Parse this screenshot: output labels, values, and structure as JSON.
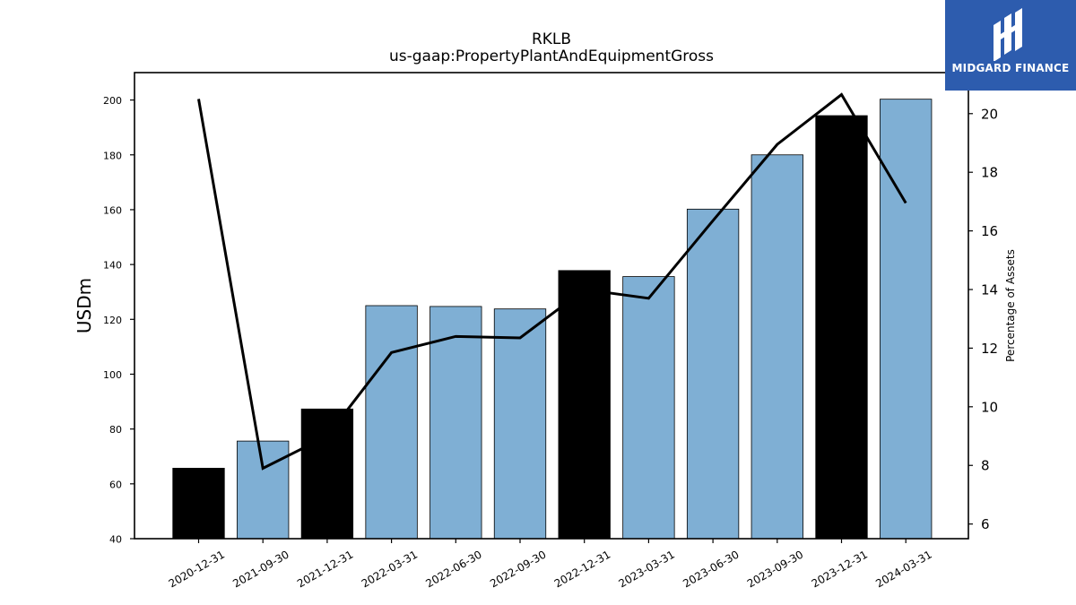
{
  "logo": {
    "text": "MIDGARD FINANCE",
    "icon": "midgard-logo-icon"
  },
  "chart_data": {
    "type": "bar",
    "title": "RKLB",
    "subtitle": "us-gaap:PropertyPlantAndEquipmentGross",
    "ylabel": "USDm",
    "y2label": "Percentage of Assets",
    "categories": [
      "2020-12-31",
      "2021-09-30",
      "2021-12-31",
      "2022-03-31",
      "2022-06-30",
      "2022-09-30",
      "2022-12-31",
      "2023-03-31",
      "2023-06-30",
      "2023-09-30",
      "2023-12-31",
      "2024-03-31"
    ],
    "bar_colors": [
      "#000000",
      "#7fafd4",
      "#000000",
      "#7fafd4",
      "#7fafd4",
      "#7fafd4",
      "#000000",
      "#7fafd4",
      "#7fafd4",
      "#7fafd4",
      "#000000",
      "#7fafd4"
    ],
    "series": [
      {
        "axis": "left",
        "type": "bar",
        "values": [
          65.7,
          75.6,
          87.3,
          125.0,
          124.7,
          123.8,
          137.8,
          135.6,
          160.2,
          180.0,
          194.3,
          200.3
        ]
      },
      {
        "axis": "right",
        "type": "line",
        "color": "#000000",
        "values": [
          20.5,
          7.9,
          9.0,
          11.85,
          12.4,
          12.35,
          14.0,
          13.7,
          16.35,
          18.95,
          20.65,
          16.95
        ]
      }
    ],
    "ylim": [
      40,
      210
    ],
    "yticks": [
      40,
      60,
      80,
      100,
      120,
      140,
      160,
      180,
      200
    ],
    "y2lim": [
      5.5,
      21.4
    ],
    "y2ticks": [
      6,
      8,
      10,
      12,
      14,
      16,
      18,
      20
    ],
    "grid": false,
    "legend": "none"
  }
}
